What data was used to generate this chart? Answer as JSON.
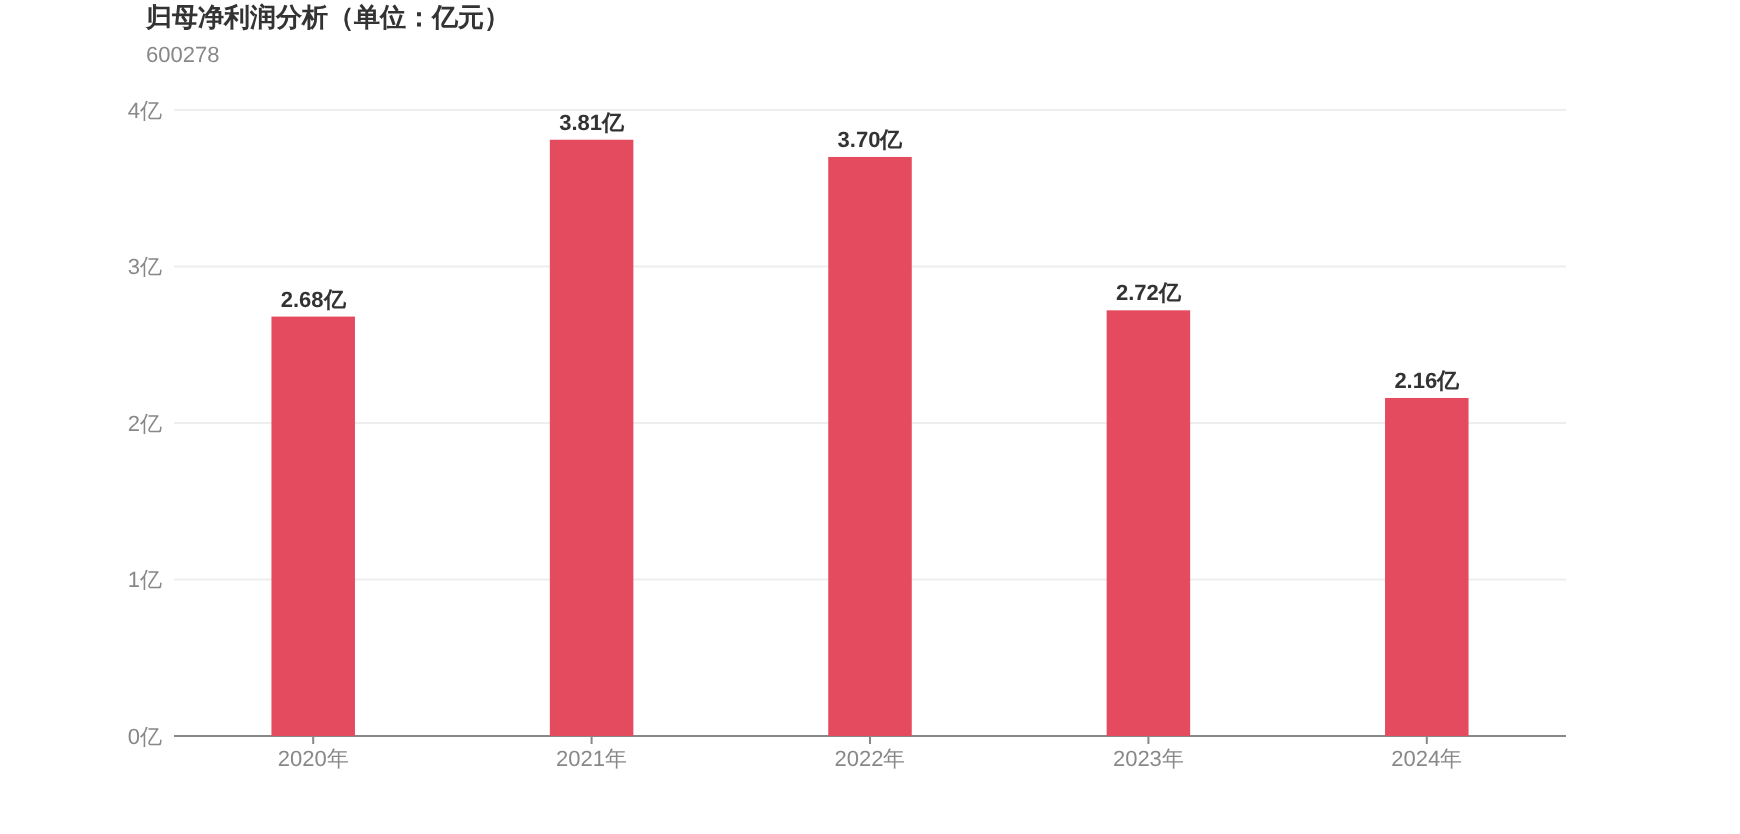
{
  "chart_data": {
    "type": "bar",
    "title": "归母净利润分析（单位：亿元）",
    "subtitle": "600278",
    "categories": [
      "2020年",
      "2021年",
      "2022年",
      "2023年",
      "2024年"
    ],
    "values": [
      2.68,
      3.81,
      3.7,
      2.72,
      2.16
    ],
    "value_labels": [
      "2.68亿",
      "3.81亿",
      "3.70亿",
      "2.72亿",
      "2.16亿"
    ],
    "color": "#e54b5f",
    "ylim": [
      0,
      4
    ],
    "yticks": [
      {
        "value": 0,
        "label": "0亿"
      },
      {
        "value": 1,
        "label": "1亿"
      },
      {
        "value": 2,
        "label": "2亿"
      },
      {
        "value": 3,
        "label": "3亿"
      },
      {
        "value": 4,
        "label": "4亿"
      }
    ],
    "grid": "y"
  }
}
